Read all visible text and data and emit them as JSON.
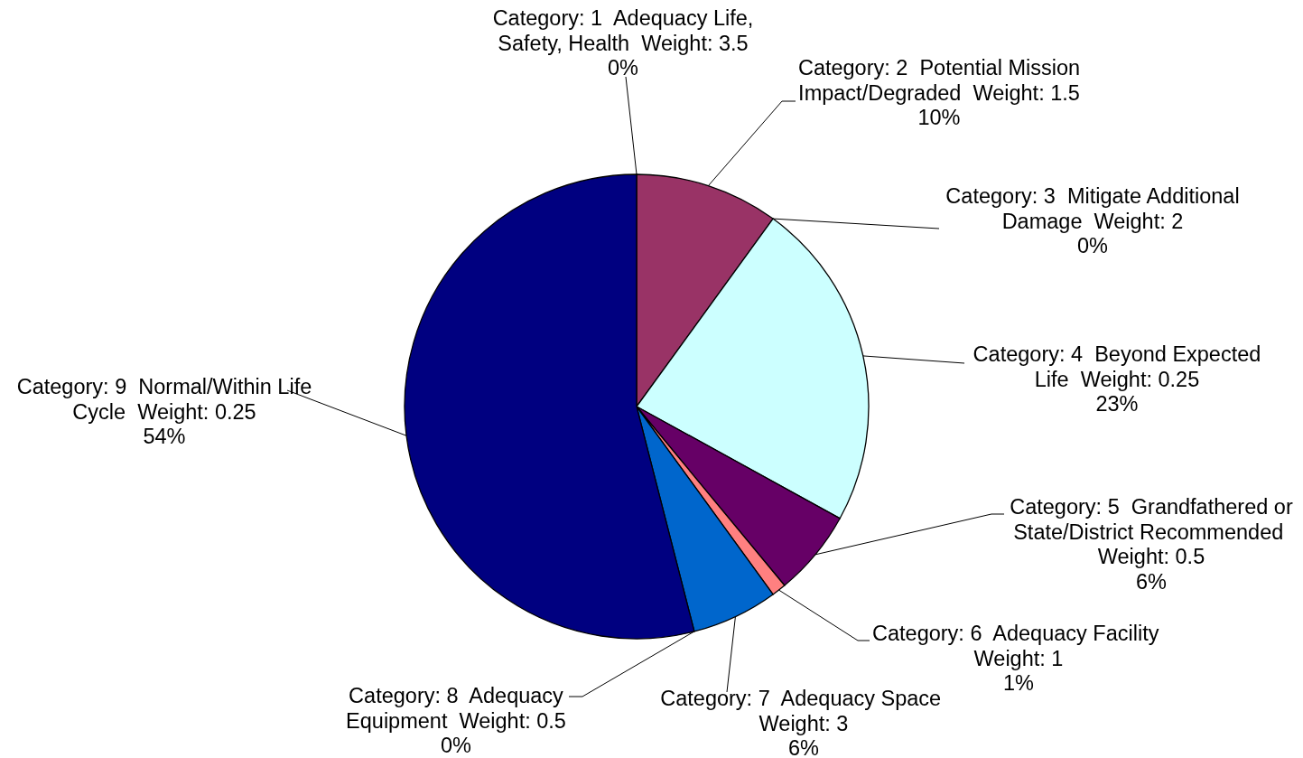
{
  "chart_data": {
    "type": "pie",
    "categories": [
      "Category: 1  Adequacy Life, Safety, Health  Weight: 3.5",
      "Category: 2  Potential Mission Impact/Degraded  Weight: 1.5",
      "Category: 3  Mitigate Additional Damage  Weight: 2",
      "Category: 4  Beyond Expected Life  Weight: 0.25",
      "Category: 5  Grandfathered or State/District Recommended  Weight: 0.5",
      "Category: 6  Adequacy Facility  Weight: 1",
      "Category: 7  Adequacy Space  Weight: 3",
      "Category: 8  Adequacy Equipment  Weight: 0.5",
      "Category: 9  Normal/Within Life Cycle  Weight: 0.25"
    ],
    "values": [
      0,
      10,
      0,
      23,
      6,
      1,
      6,
      0,
      54
    ],
    "colors": [
      null,
      "#993366",
      null,
      "#ccffff",
      "#660066",
      "#ff8080",
      "#0066cc",
      null,
      "#000080"
    ],
    "value_labels": [
      "0%",
      "10%",
      "0%",
      "23%",
      "6%",
      "1%",
      "6%",
      "0%",
      "54%"
    ]
  }
}
